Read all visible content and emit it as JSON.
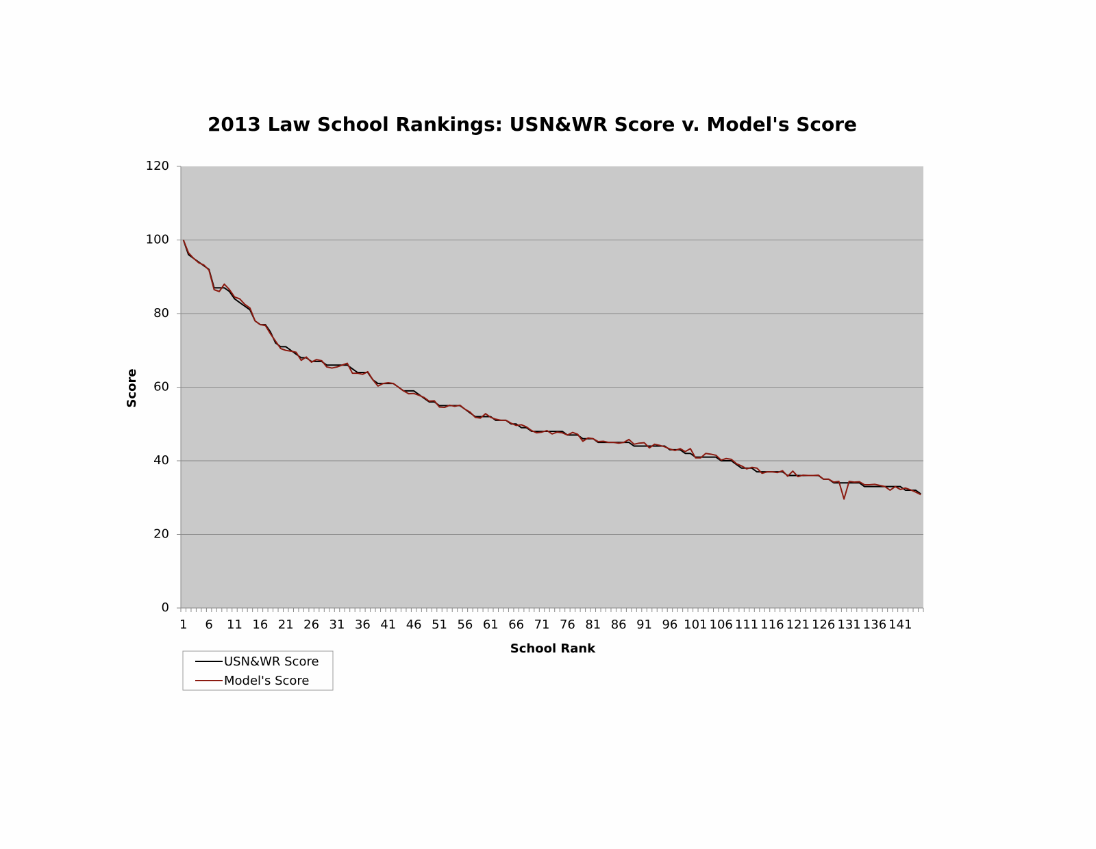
{
  "chart_data": {
    "type": "line",
    "title": "2013 Law School Rankings:  USN&WR Score v. Model's Score",
    "x_label": "School Rank",
    "y_label": "Score",
    "categories": [
      1,
      null,
      null,
      null,
      null,
      6,
      null,
      null,
      null,
      null,
      11,
      null,
      null,
      null,
      null,
      16,
      null,
      null,
      null,
      null,
      21,
      null,
      null,
      null,
      null,
      26,
      null,
      null,
      null,
      null,
      31,
      null,
      null,
      null,
      null,
      36,
      null,
      null,
      null,
      null,
      41,
      null,
      null,
      null,
      null,
      46,
      null,
      null,
      null,
      null,
      51,
      null,
      null,
      null,
      null,
      56,
      null,
      null,
      null,
      null,
      61,
      null,
      null,
      null,
      null,
      66,
      null,
      null,
      null,
      null,
      71,
      null,
      null,
      null,
      null,
      76,
      null,
      null,
      null,
      null,
      81,
      null,
      null,
      null,
      null,
      86,
      null,
      null,
      null,
      null,
      91,
      null,
      null,
      null,
      null,
      96,
      null,
      null,
      null,
      null,
      101,
      null,
      null,
      null,
      null,
      106,
      null,
      null,
      null,
      null,
      111,
      null,
      null,
      null,
      null,
      116,
      null,
      null,
      null,
      null,
      121,
      null,
      null,
      null,
      null,
      126,
      null,
      null,
      null,
      null,
      131,
      null,
      null,
      null,
      null,
      136,
      null,
      null,
      null,
      null,
      141,
      null,
      null,
      null,
      null
    ],
    "series": [
      {
        "name": "USN&WR Score",
        "color": "#000000",
        "values": [
          100,
          96,
          95,
          94,
          93,
          92,
          87,
          87,
          87,
          86,
          84,
          83,
          82,
          81,
          78,
          77,
          77,
          75,
          72,
          71,
          71,
          70,
          69,
          68,
          68,
          67,
          67,
          67,
          66,
          66,
          66,
          66,
          66,
          65,
          64,
          64,
          64,
          62,
          61,
          61,
          61,
          61,
          60,
          59,
          59,
          59,
          58,
          57,
          56,
          56,
          55,
          55,
          55,
          55,
          55,
          54,
          53,
          52,
          52,
          52,
          52,
          51,
          51,
          51,
          50,
          50,
          49,
          49,
          48,
          48,
          48,
          48,
          48,
          48,
          48,
          47,
          47,
          47,
          46,
          46,
          46,
          45,
          45,
          45,
          45,
          45,
          45,
          45,
          44,
          44,
          44,
          44,
          44,
          44,
          44,
          43,
          43,
          43,
          42,
          42,
          41,
          41,
          41,
          41,
          41,
          40,
          40,
          40,
          39,
          38,
          38,
          38,
          37,
          37,
          37,
          37,
          37,
          37,
          36,
          36,
          36,
          36,
          36,
          36,
          36,
          35,
          35,
          34,
          34,
          34,
          34,
          34,
          34,
          33,
          33,
          33,
          33,
          33,
          33,
          33,
          33,
          32,
          32,
          32,
          31
        ]
      },
      {
        "name": "Model's Score",
        "color": "#8b1a10",
        "values": [
          100,
          96.5,
          95,
          93.8,
          93.2,
          91.8,
          86.5,
          86,
          88,
          86.5,
          84.5,
          84,
          82.5,
          81.5,
          78,
          77,
          76.8,
          74.5,
          72.5,
          70.5,
          70,
          69.8,
          69.5,
          67.3,
          68.2,
          66.8,
          67.5,
          67.2,
          65.5,
          65.2,
          65.5,
          66,
          66.5,
          63.8,
          63.8,
          63.5,
          64.2,
          62,
          60.3,
          61,
          61.2,
          61,
          60,
          59,
          58.2,
          58.3,
          57.8,
          57.2,
          56.2,
          56.3,
          54.6,
          54.5,
          55.1,
          54.8,
          55.1,
          54,
          53.2,
          51.8,
          51.6,
          52.8,
          51.8,
          51.3,
          51,
          51,
          50.2,
          49.6,
          49.8,
          49.2,
          48.2,
          47.6,
          47.8,
          48.2,
          47.3,
          47.8,
          47.6,
          47,
          47.7,
          47.2,
          45.3,
          46.2,
          46,
          45.2,
          45.3,
          45,
          45,
          44.8,
          45,
          45.8,
          44.5,
          44.8,
          44.9,
          43.5,
          44.5,
          44.2,
          43.8,
          43.2,
          42.8,
          43.3,
          42.5,
          43.3,
          40.8,
          40.8,
          42,
          41.8,
          41.5,
          40.2,
          40.6,
          40.4,
          39.2,
          38.6,
          37.8,
          38.2,
          38,
          36.6,
          37,
          37,
          36.8,
          37.3,
          35.8,
          37.2,
          35.7,
          36.1,
          36,
          36,
          36.1,
          35,
          35,
          34.2,
          34.4,
          29.6,
          34.4,
          34.2,
          34.3,
          33.5,
          33.5,
          33.6,
          33.3,
          33,
          32,
          33,
          32.2,
          32.6,
          32.1,
          31.5,
          30.8
        ]
      }
    ],
    "ylim": [
      0,
      120
    ],
    "yticks": [
      0,
      20,
      40,
      60,
      80,
      100,
      120
    ],
    "grid": true,
    "legend": "bottom-left"
  }
}
